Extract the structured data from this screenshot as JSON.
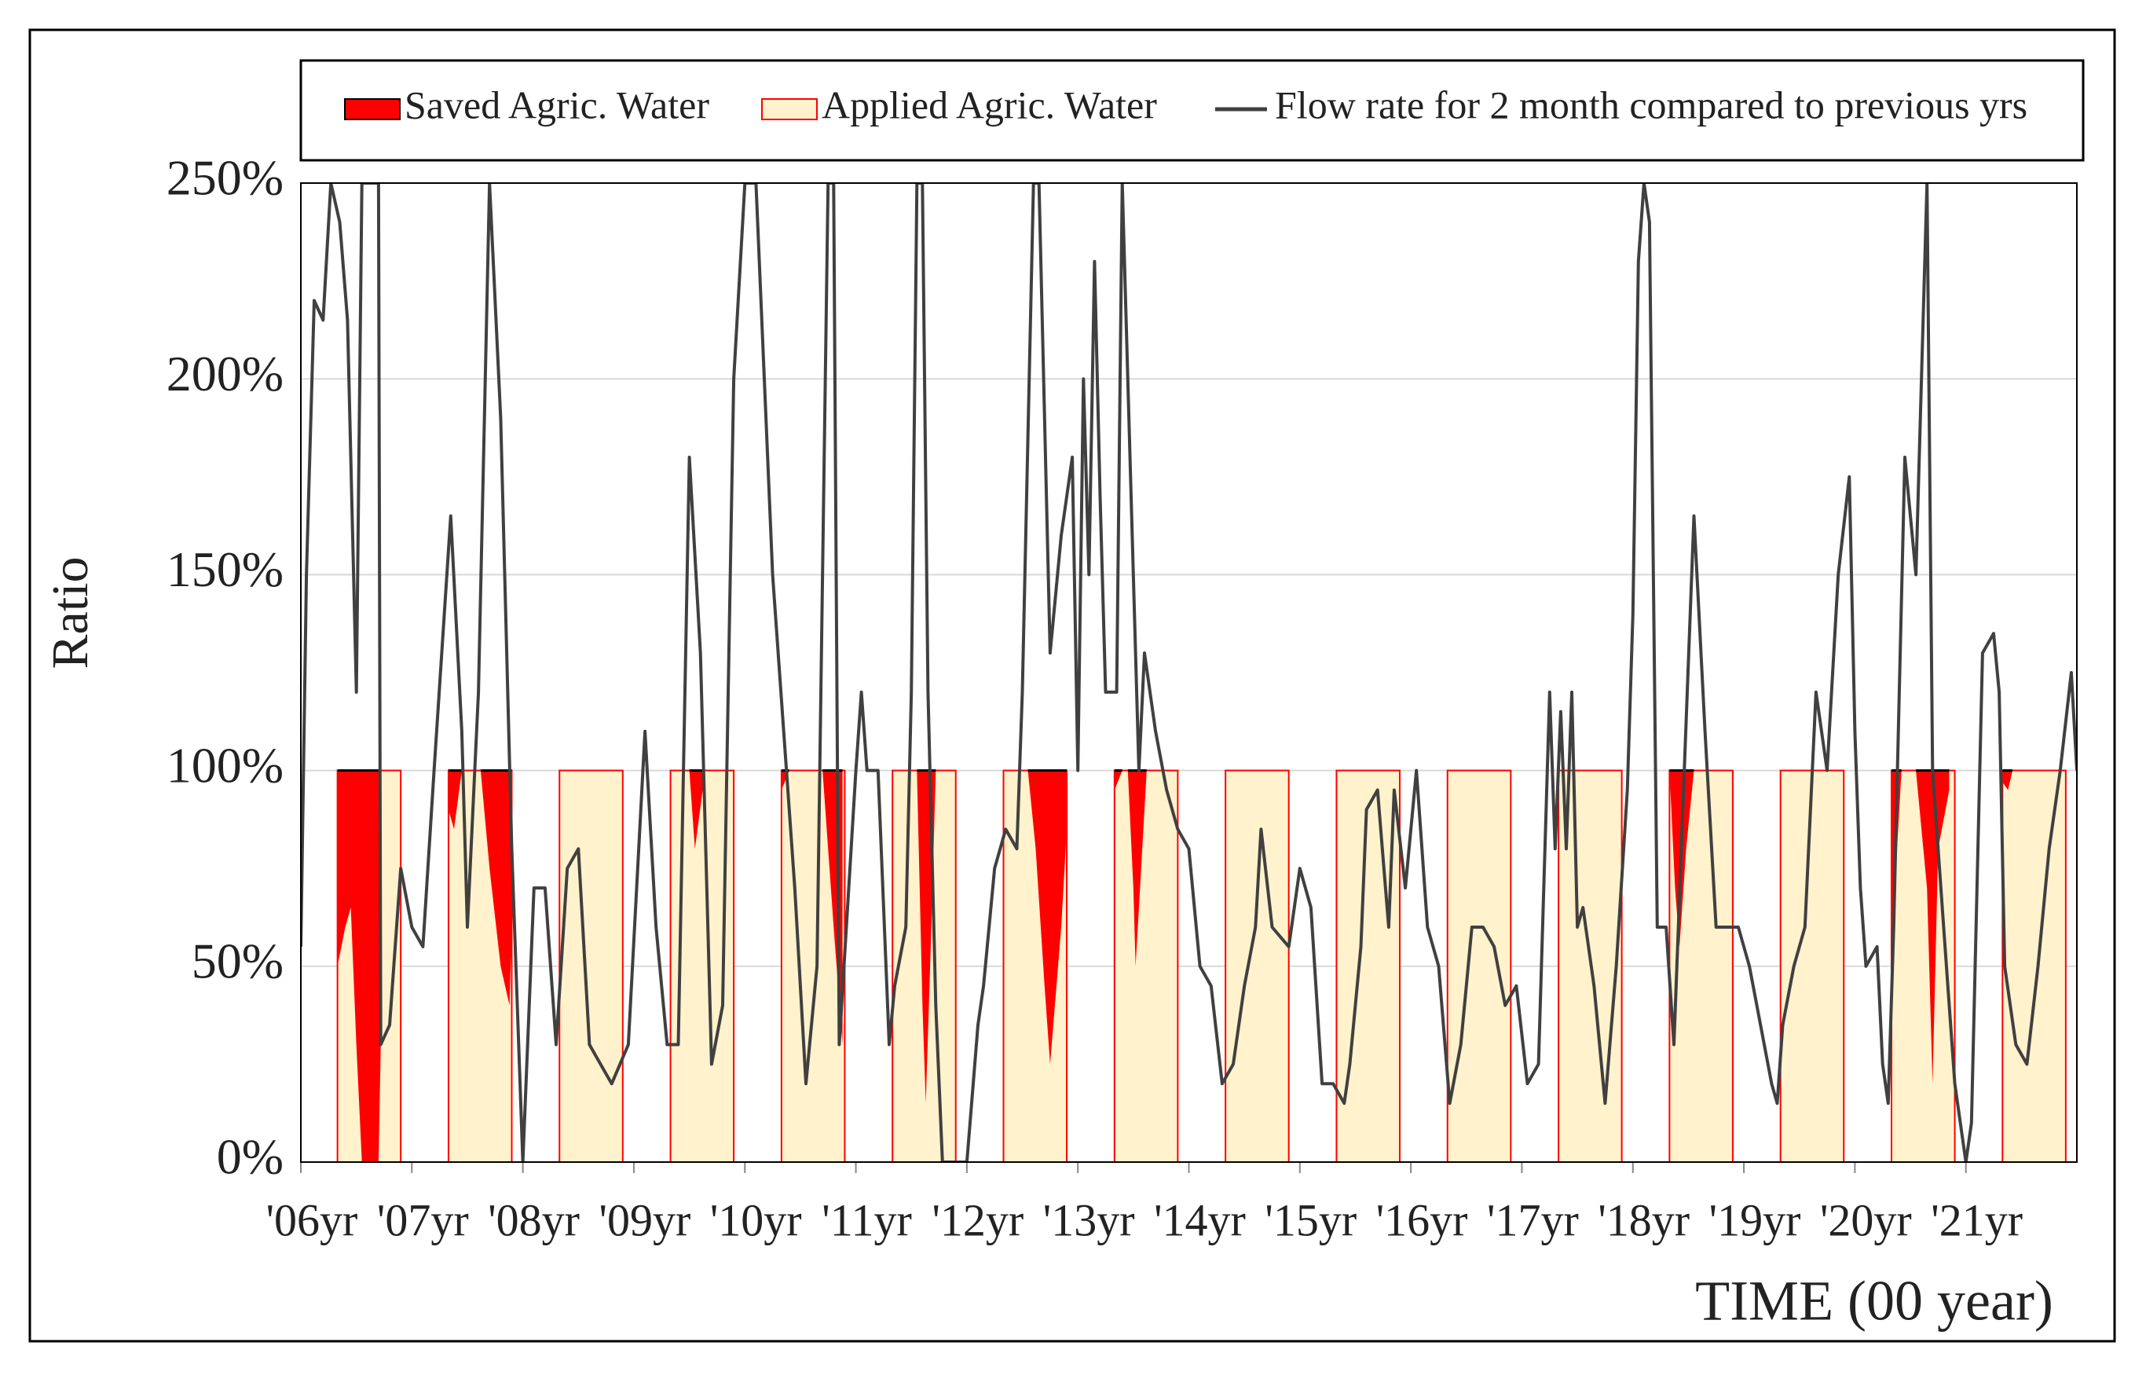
{
  "chart_data": {
    "type": "line",
    "y_label": "Ratio",
    "x_label": "TIME (00 year)",
    "xlim": [
      2006,
      2022
    ],
    "xticks": [
      {
        "value": 2006,
        "label": "'06yr"
      },
      {
        "value": 2007,
        "label": "'07yr"
      },
      {
        "value": 2008,
        "label": "'08yr"
      },
      {
        "value": 2009,
        "label": "'09yr"
      },
      {
        "value": 2010,
        "label": "'10yr"
      },
      {
        "value": 2011,
        "label": "'11yr"
      },
      {
        "value": 2012,
        "label": "'12yr"
      },
      {
        "value": 2013,
        "label": "'13yr"
      },
      {
        "value": 2014,
        "label": "'14yr"
      },
      {
        "value": 2015,
        "label": "'15yr"
      },
      {
        "value": 2016,
        "label": "'16yr"
      },
      {
        "value": 2017,
        "label": "'17yr"
      },
      {
        "value": 2018,
        "label": "'18yr"
      },
      {
        "value": 2019,
        "label": "'19yr"
      },
      {
        "value": 2020,
        "label": "'20yr"
      },
      {
        "value": 2021,
        "label": "'21yr"
      }
    ],
    "ylim": [
      0,
      250
    ],
    "yticks": [
      {
        "value": 0,
        "label": "0%"
      },
      {
        "value": 50,
        "label": "50%"
      },
      {
        "value": 100,
        "label": "100%"
      },
      {
        "value": 150,
        "label": "150%"
      },
      {
        "value": 200,
        "label": "200%"
      },
      {
        "value": 250,
        "label": "250%"
      }
    ],
    "grid": true,
    "series": [
      {
        "name": "Saved Agric. Water",
        "kind": "area",
        "color": "#ff0000",
        "x": [
          2006.33,
          2006.4,
          2006.45,
          2006.5,
          2006.55,
          2006.7,
          2006.72,
          null,
          2007.33,
          2007.38,
          2007.45,
          null,
          2007.62,
          2007.7,
          2007.8,
          2007.88,
          2007.9,
          null,
          2009.5,
          2009.55,
          2009.62,
          null,
          2010.33,
          2010.4,
          null,
          2010.7,
          2010.8,
          2010.88,
          null,
          2011.55,
          2011.6,
          2011.63,
          2011.68,
          2011.72,
          null,
          2012.55,
          2012.62,
          2012.7,
          2012.75,
          2012.85,
          2012.9,
          null,
          2013.33,
          2013.4,
          null,
          2013.45,
          2013.5,
          2013.52,
          2013.58,
          2013.62,
          null,
          2018.33,
          2018.38,
          2018.42,
          2018.48,
          2018.55,
          null,
          2020.33,
          2020.38,
          2020.42,
          null,
          2020.55,
          2020.65,
          2020.7,
          2020.75,
          2020.85,
          null,
          2021.33,
          2021.38,
          2021.42
        ],
        "values": [
          50,
          60,
          65,
          30,
          0,
          0,
          30,
          null,
          90,
          85,
          100,
          null,
          100,
          75,
          50,
          40,
          60,
          null,
          100,
          80,
          95,
          null,
          95,
          100,
          null,
          100,
          60,
          30,
          null,
          100,
          40,
          15,
          60,
          100,
          null,
          100,
          80,
          45,
          25,
          60,
          85,
          null,
          95,
          100,
          null,
          100,
          70,
          50,
          80,
          100,
          null,
          100,
          70,
          55,
          80,
          100,
          null,
          50,
          80,
          100,
          null,
          100,
          70,
          20,
          80,
          95,
          null,
          97,
          95,
          100
        ]
      },
      {
        "name": "Applied Agric. Water",
        "kind": "band",
        "color": "#fff2cc",
        "edge": "#ff0000",
        "x_start": [
          2006.33,
          2007.33,
          2008.33,
          2009.33,
          2010.33,
          2011.33,
          2012.33,
          2013.33,
          2014.33,
          2015.33,
          2016.33,
          2017.33,
          2018.33,
          2019.33,
          2020.33,
          2021.33
        ],
        "x_end": [
          2006.9,
          2007.9,
          2008.9,
          2009.9,
          2010.9,
          2011.9,
          2012.9,
          2013.9,
          2014.9,
          2015.9,
          2016.9,
          2017.9,
          2018.9,
          2019.9,
          2020.9,
          2021.9
        ],
        "values": [
          100,
          100,
          100,
          100,
          100,
          100,
          100,
          100,
          100,
          100,
          100,
          100,
          100,
          100,
          100,
          100
        ]
      },
      {
        "name": "Flow rate for 2 month compared to previous yrs",
        "kind": "line",
        "color": "#404040",
        "x": [
          2006.0,
          2006.05,
          2006.12,
          2006.2,
          2006.27,
          2006.35,
          2006.42,
          2006.5,
          2006.55,
          2006.7,
          2006.72,
          2006.8,
          2006.9,
          2007.0,
          2007.1,
          2007.2,
          2007.35,
          2007.45,
          2007.5,
          2007.6,
          2007.7,
          2007.8,
          2007.9,
          2008.0,
          2008.1,
          2008.2,
          2008.3,
          2008.4,
          2008.5,
          2008.6,
          2008.7,
          2008.8,
          2008.95,
          2009.1,
          2009.2,
          2009.3,
          2009.4,
          2009.5,
          2009.6,
          2009.7,
          2009.8,
          2009.9,
          2010.0,
          2010.1,
          2010.25,
          2010.35,
          2010.45,
          2010.55,
          2010.65,
          2010.75,
          2010.8,
          2010.85,
          2011.0,
          2011.05,
          2011.1,
          2011.2,
          2011.3,
          2011.35,
          2011.45,
          2011.5,
          2011.55,
          2011.6,
          2011.65,
          2011.72,
          2011.78,
          2012.0,
          2012.1,
          2012.15,
          2012.25,
          2012.35,
          2012.45,
          2012.5,
          2012.6,
          2012.65,
          2012.75,
          2012.85,
          2012.95,
          2013.0,
          2013.05,
          2013.1,
          2013.15,
          2013.2,
          2013.25,
          2013.35,
          2013.4,
          2013.5,
          2013.55,
          2013.6,
          2013.7,
          2013.8,
          2013.9,
          2014.0,
          2014.1,
          2014.2,
          2014.3,
          2014.4,
          2014.5,
          2014.6,
          2014.65,
          2014.75,
          2014.9,
          2015.0,
          2015.1,
          2015.2,
          2015.3,
          2015.4,
          2015.45,
          2015.55,
          2015.6,
          2015.7,
          2015.8,
          2015.85,
          2015.95,
          2016.05,
          2016.15,
          2016.25,
          2016.35,
          2016.45,
          2016.55,
          2016.65,
          2016.75,
          2016.85,
          2016.95,
          2017.05,
          2017.15,
          2017.25,
          2017.3,
          2017.35,
          2017.4,
          2017.45,
          2017.5,
          2017.55,
          2017.65,
          2017.75,
          2017.85,
          2017.95,
          2018.0,
          2018.05,
          2018.1,
          2018.15,
          2018.22,
          2018.3,
          2018.37,
          2018.45,
          2018.55,
          2018.65,
          2018.75,
          2018.85,
          2018.95,
          2019.05,
          2019.15,
          2019.25,
          2019.3,
          2019.35,
          2019.45,
          2019.55,
          2019.65,
          2019.75,
          2019.85,
          2019.95,
          2020.0,
          2020.05,
          2020.1,
          2020.2,
          2020.25,
          2020.3,
          2020.35,
          2020.45,
          2020.55,
          2020.65,
          2020.7,
          2020.8,
          2020.9,
          2021.0,
          2021.05,
          2021.15,
          2021.25,
          2021.3,
          2021.35,
          2021.45,
          2021.55,
          2021.65,
          2021.75,
          2021.85,
          2021.95,
          2022.0
        ],
        "values": [
          55,
          150,
          220,
          215,
          250,
          240,
          215,
          120,
          250,
          250,
          30,
          35,
          75,
          60,
          55,
          100,
          165,
          110,
          60,
          120,
          250,
          190,
          80,
          0,
          70,
          70,
          30,
          75,
          80,
          30,
          25,
          20,
          30,
          110,
          60,
          30,
          30,
          180,
          130,
          25,
          40,
          200,
          250,
          250,
          150,
          110,
          70,
          20,
          50,
          250,
          250,
          30,
          100,
          120,
          100,
          100,
          30,
          45,
          60,
          120,
          250,
          250,
          120,
          40,
          0,
          0,
          35,
          45,
          75,
          85,
          80,
          120,
          250,
          250,
          130,
          160,
          180,
          100,
          200,
          150,
          230,
          170,
          120,
          120,
          250,
          150,
          100,
          130,
          110,
          95,
          85,
          80,
          50,
          45,
          20,
          25,
          45,
          60,
          85,
          60,
          55,
          75,
          65,
          20,
          20,
          15,
          25,
          55,
          90,
          95,
          60,
          95,
          70,
          100,
          60,
          50,
          15,
          30,
          60,
          60,
          55,
          40,
          45,
          20,
          25,
          120,
          80,
          115,
          80,
          120,
          60,
          65,
          45,
          15,
          50,
          95,
          140,
          230,
          250,
          240,
          60,
          60,
          30,
          90,
          165,
          110,
          60,
          60,
          60,
          50,
          35,
          20,
          15,
          35,
          50,
          60,
          120,
          100,
          150,
          175,
          110,
          70,
          50,
          55,
          25,
          15,
          60,
          180,
          150,
          250,
          100,
          60,
          20,
          0,
          10,
          130,
          135,
          120,
          50,
          30,
          25,
          50,
          80,
          100,
          125,
          100
        ]
      }
    ]
  }
}
